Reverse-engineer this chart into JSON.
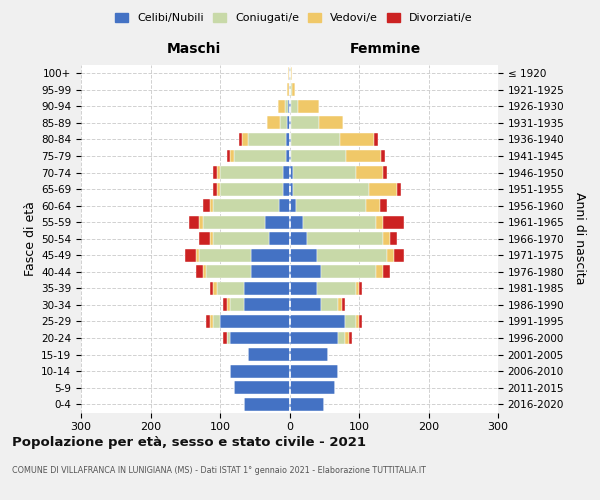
{
  "age_groups": [
    "0-4",
    "5-9",
    "10-14",
    "15-19",
    "20-24",
    "25-29",
    "30-34",
    "35-39",
    "40-44",
    "45-49",
    "50-54",
    "55-59",
    "60-64",
    "65-69",
    "70-74",
    "75-79",
    "80-84",
    "85-89",
    "90-94",
    "95-99",
    "100+"
  ],
  "birth_years": [
    "2016-2020",
    "2011-2015",
    "2006-2010",
    "2001-2005",
    "1996-2000",
    "1991-1995",
    "1986-1990",
    "1981-1985",
    "1976-1980",
    "1971-1975",
    "1966-1970",
    "1961-1965",
    "1956-1960",
    "1951-1955",
    "1946-1950",
    "1941-1945",
    "1936-1940",
    "1931-1935",
    "1926-1930",
    "1921-1925",
    "≤ 1920"
  ],
  "colors": {
    "celibe": "#4472c4",
    "coniugato": "#c8d9a8",
    "vedovo": "#f0c868",
    "divorziato": "#cc2222"
  },
  "maschi": {
    "celibe": [
      65,
      80,
      85,
      60,
      85,
      100,
      65,
      65,
      55,
      55,
      30,
      35,
      15,
      10,
      10,
      5,
      5,
      4,
      2,
      1,
      1
    ],
    "coniugato": [
      0,
      0,
      0,
      0,
      5,
      10,
      20,
      40,
      65,
      75,
      80,
      90,
      95,
      90,
      90,
      75,
      55,
      10,
      5,
      0,
      0
    ],
    "vedovo": [
      0,
      0,
      0,
      0,
      0,
      5,
      5,
      5,
      5,
      5,
      5,
      5,
      5,
      5,
      5,
      5,
      8,
      18,
      10,
      2,
      1
    ],
    "divorziato": [
      0,
      0,
      0,
      0,
      5,
      5,
      5,
      5,
      10,
      15,
      15,
      15,
      10,
      5,
      5,
      5,
      5,
      0,
      0,
      0,
      0
    ]
  },
  "femmine": {
    "nubile": [
      50,
      65,
      70,
      55,
      70,
      80,
      45,
      40,
      45,
      40,
      25,
      20,
      10,
      5,
      5,
      2,
      2,
      2,
      2,
      1,
      1
    ],
    "coniugata": [
      0,
      0,
      0,
      0,
      10,
      15,
      25,
      55,
      80,
      100,
      110,
      105,
      100,
      110,
      90,
      80,
      70,
      40,
      10,
      2,
      1
    ],
    "vedova": [
      0,
      0,
      0,
      0,
      5,
      5,
      5,
      5,
      10,
      10,
      10,
      10,
      20,
      40,
      40,
      50,
      50,
      35,
      30,
      5,
      2
    ],
    "divorziata": [
      0,
      0,
      0,
      0,
      5,
      5,
      5,
      5,
      10,
      15,
      10,
      30,
      10,
      5,
      5,
      5,
      5,
      0,
      0,
      0,
      0
    ]
  },
  "xlim": 300,
  "title": "Popolazione per età, sesso e stato civile - 2021",
  "subtitle": "COMUNE DI VILLAFRANCA IN LUNIGIANA (MS) - Dati ISTAT 1° gennaio 2021 - Elaborazione TUTTITALIA.IT",
  "xlabel_left": "Maschi",
  "xlabel_right": "Femmine",
  "ylabel_left": "Fasce di età",
  "ylabel_right": "Anni di nascita",
  "background_color": "#f0f0f0",
  "plot_background": "#ffffff",
  "grid_color": "#cccccc"
}
